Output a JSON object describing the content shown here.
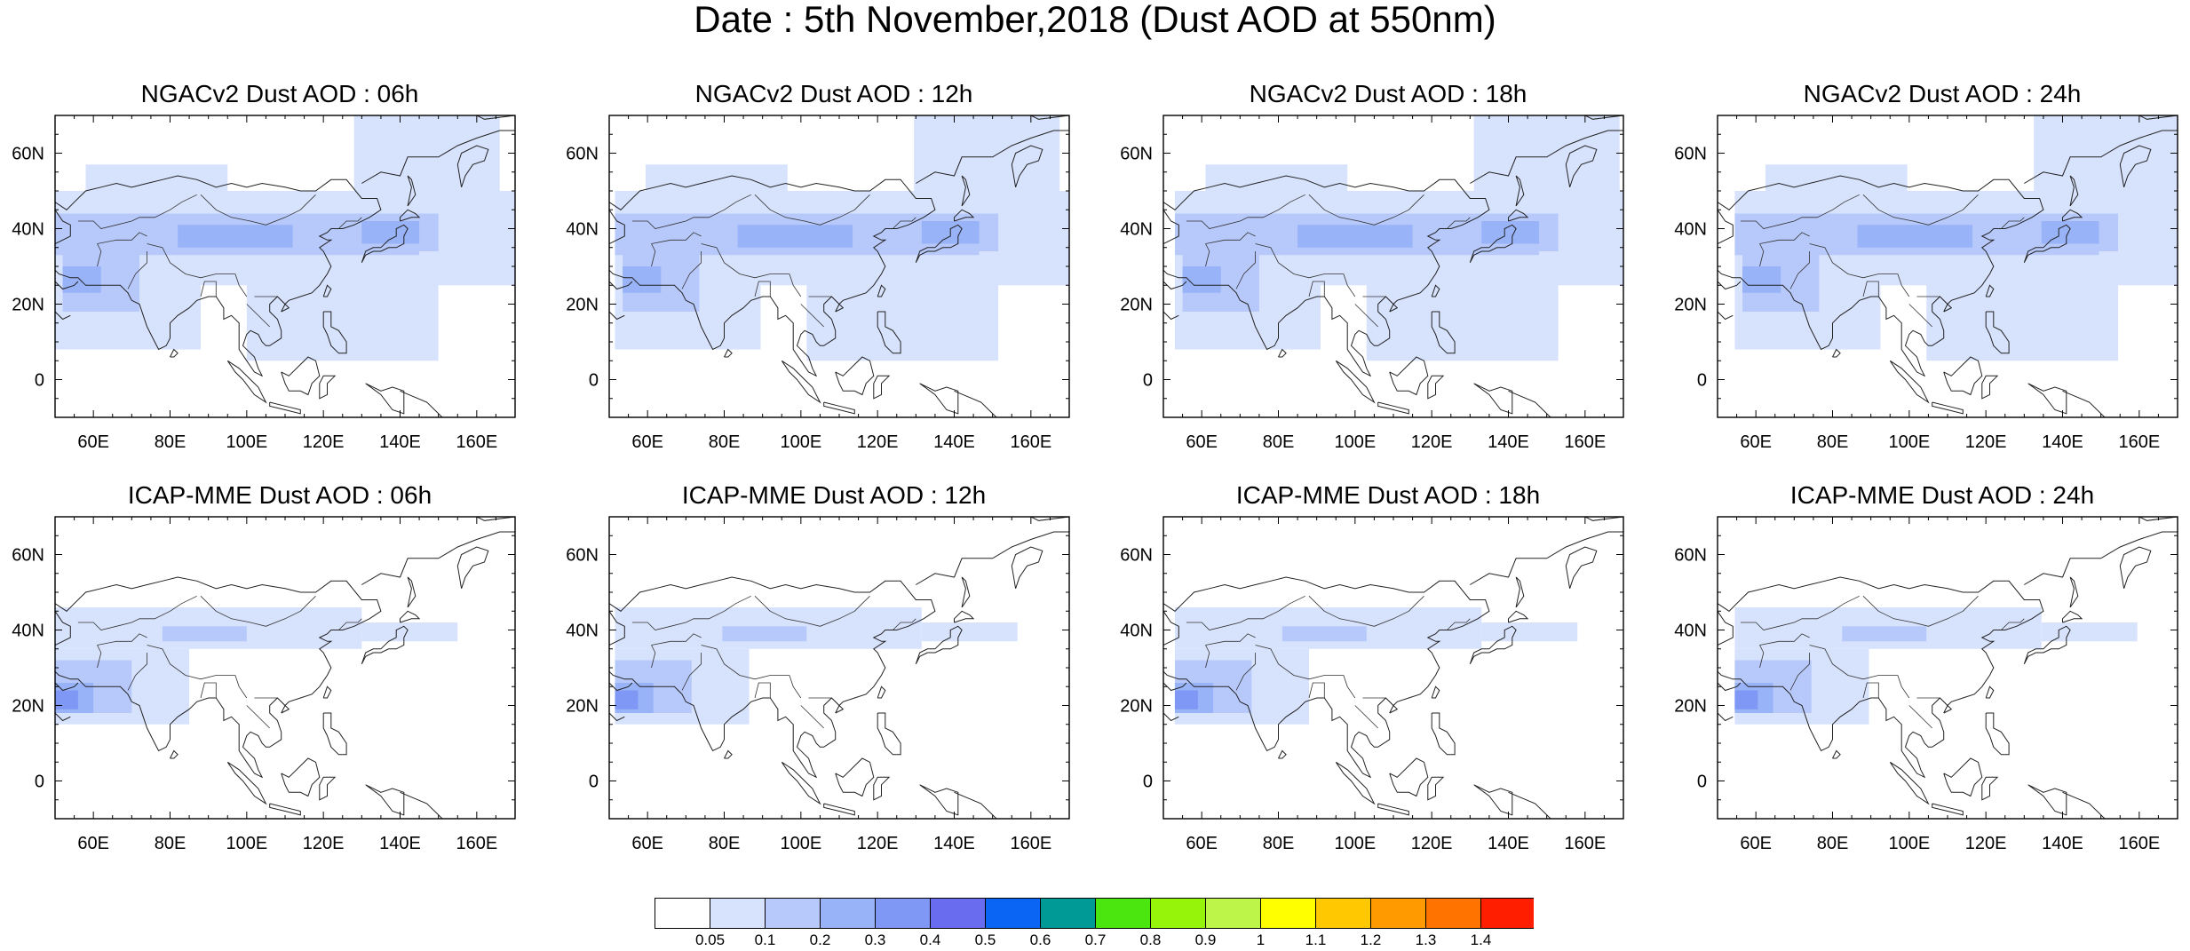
{
  "title": "Date : 5th November,2018 (Dust AOD at 550nm)",
  "panels": [
    {
      "title": "NGACv2 Dust AOD : 06h",
      "model": "NGACv2",
      "hour": "06h"
    },
    {
      "title": "NGACv2 Dust AOD : 12h",
      "model": "NGACv2",
      "hour": "12h"
    },
    {
      "title": "NGACv2 Dust AOD : 18h",
      "model": "NGACv2",
      "hour": "18h"
    },
    {
      "title": "NGACv2 Dust AOD : 24h",
      "model": "NGACv2",
      "hour": "24h"
    },
    {
      "title": "ICAP-MME Dust AOD : 06h",
      "model": "ICAP-MME",
      "hour": "06h"
    },
    {
      "title": "ICAP-MME Dust AOD : 12h",
      "model": "ICAP-MME",
      "hour": "12h"
    },
    {
      "title": "ICAP-MME Dust AOD : 18h",
      "model": "ICAP-MME",
      "hour": "18h"
    },
    {
      "title": "ICAP-MME Dust AOD : 24h",
      "model": "ICAP-MME",
      "hour": "24h"
    }
  ],
  "map": {
    "lon_range": [
      50,
      170
    ],
    "lat_range": [
      -10,
      70
    ],
    "lon_ticks": [
      "60E",
      "80E",
      "100E",
      "120E",
      "140E",
      "160E"
    ],
    "lat_ticks": [
      "0",
      "20N",
      "40N",
      "60N"
    ]
  },
  "colorbar": {
    "labels": [
      "0.05",
      "0.1",
      "0.2",
      "0.3",
      "0.4",
      "0.5",
      "0.6",
      "0.7",
      "0.8",
      "0.9",
      "1",
      "1.1",
      "1.2",
      "1.3",
      "1.4"
    ],
    "colors": [
      "#ffffff",
      "#d7e2fd",
      "#b7c9fb",
      "#98b3f8",
      "#7f98f5",
      "#6a6cf0",
      "#0a64f4",
      "#009a96",
      "#4be510",
      "#96f30a",
      "#bdf648",
      "#ffff00",
      "#ffc800",
      "#ff9b00",
      "#ff7300",
      "#ff1e00"
    ]
  }
}
